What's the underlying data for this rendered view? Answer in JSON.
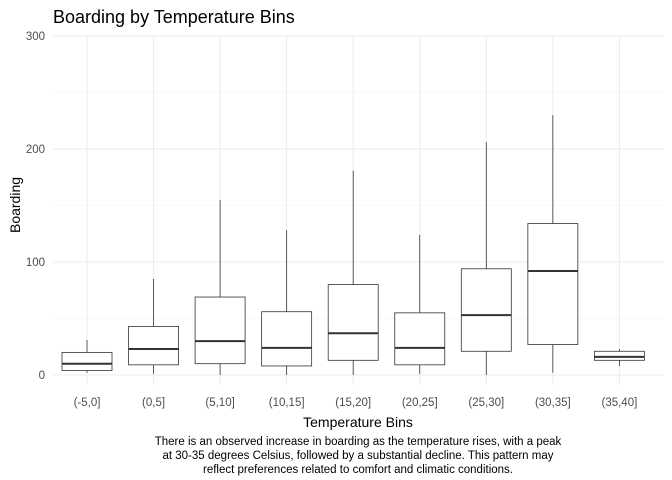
{
  "chart_data": {
    "type": "boxplot",
    "title": "Boarding by Temperature Bins",
    "xlabel": "Temperature Bins",
    "ylabel": "Boarding",
    "ylim": [
      0,
      300
    ],
    "yticks": [
      0,
      100,
      200,
      300
    ],
    "grid": true,
    "categories": [
      "(-5,0]",
      "(0,5]",
      "(5,10]",
      "(10,15]",
      "(15,20]",
      "(20,25]",
      "(25,30]",
      "(30,35]",
      "(35,40]"
    ],
    "boxes": [
      {
        "min": 2,
        "q1": 4,
        "median": 10,
        "q3": 20,
        "max": 31
      },
      {
        "min": 1,
        "q1": 9,
        "median": 23,
        "q3": 43,
        "max": 85
      },
      {
        "min": 0,
        "q1": 10,
        "median": 30,
        "q3": 69,
        "max": 155
      },
      {
        "min": 0,
        "q1": 8,
        "median": 24,
        "q3": 56,
        "max": 128
      },
      {
        "min": 0,
        "q1": 13,
        "median": 37,
        "q3": 80,
        "max": 181
      },
      {
        "min": 1,
        "q1": 9,
        "median": 24,
        "q3": 55,
        "max": 124
      },
      {
        "min": 0,
        "q1": 21,
        "median": 53,
        "q3": 94,
        "max": 206
      },
      {
        "min": 2,
        "q1": 27,
        "median": 92,
        "q3": 134,
        "max": 230
      },
      {
        "min": 8,
        "q1": 13,
        "median": 16,
        "q3": 21,
        "max": 23
      }
    ]
  },
  "caption": [
    "There is an observed increase in boarding as the temperature rises, with a peak",
    "at 30-35 degrees Celsius, followed by a substantial decline. This pattern may",
    "reflect preferences related to comfort and climatic conditions."
  ]
}
